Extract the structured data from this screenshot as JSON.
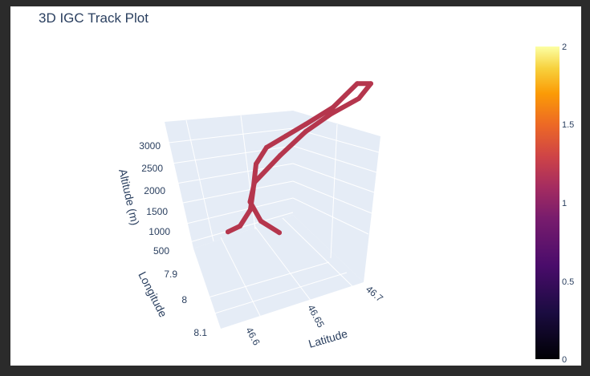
{
  "chart_data": {
    "type": "scatter3d",
    "title": "3D IGC Track Plot",
    "x_axis": {
      "label": "Latitude",
      "ticks": [
        "46.6",
        "46.65",
        "46.7"
      ]
    },
    "y_axis": {
      "label": "Longitude",
      "ticks": [
        "7.9",
        "8",
        "8.1"
      ]
    },
    "z_axis": {
      "label": "Altitude (m)",
      "ticks": [
        "500",
        "1000",
        "1500",
        "2000",
        "2500",
        "3000"
      ]
    },
    "colorbar": {
      "ticks": [
        "0",
        "0.5",
        "1",
        "1.5",
        "2"
      ],
      "range": [
        0,
        2
      ],
      "colorscale": "inferno"
    },
    "series": [
      {
        "marker_value": 1,
        "path": [
          [
            46.6,
            8.12,
            2050
          ],
          [
            46.61,
            8.1,
            2000
          ],
          [
            46.62,
            8.07,
            2080
          ],
          [
            46.625,
            8.04,
            2250
          ],
          [
            46.63,
            8.01,
            2500
          ],
          [
            46.64,
            7.98,
            2580
          ],
          [
            46.655,
            7.96,
            2600
          ],
          [
            46.67,
            7.94,
            2620
          ],
          [
            46.69,
            7.92,
            2700
          ],
          [
            46.7,
            7.9,
            2750
          ],
          [
            46.71,
            7.88,
            2800
          ],
          [
            46.72,
            7.87,
            2700
          ],
          [
            46.71,
            7.89,
            2600
          ],
          [
            46.69,
            7.91,
            2550
          ],
          [
            46.67,
            7.94,
            2500
          ],
          [
            46.65,
            7.97,
            2350
          ],
          [
            46.63,
            8.0,
            2150
          ],
          [
            46.625,
            8.02,
            1950
          ],
          [
            46.63,
            8.04,
            1700
          ],
          [
            46.64,
            8.06,
            1550
          ]
        ]
      }
    ]
  }
}
